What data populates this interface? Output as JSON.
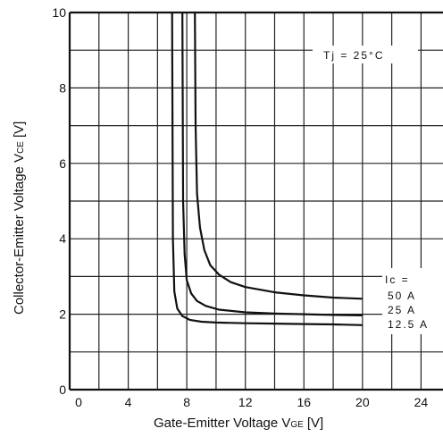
{
  "chart_data": {
    "type": "line",
    "xlabel": "Gate-Emitter Voltage V",
    "xlabel_sub": "GE",
    "xlabel_unit": "[V]",
    "ylabel": "Collector-Emitter Voltage V",
    "ylabel_sub": "CE",
    "ylabel_unit": "[V]",
    "xlim": [
      0,
      24
    ],
    "ylim": [
      0,
      10
    ],
    "x_ticks": [
      "0",
      "4",
      "8",
      "12",
      "16",
      "20",
      "24"
    ],
    "y_ticks": [
      "0",
      "2",
      "4",
      "6",
      "8",
      "10"
    ],
    "grid": true,
    "grid_step_x": 2,
    "grid_step_y": 1,
    "condition": "Tj = 25°C",
    "legend_title": "Ic =",
    "series": [
      {
        "name": "50 A",
        "x": [
          8.55,
          8.6,
          8.7,
          8.9,
          9.2,
          9.6,
          10.2,
          11,
          12,
          14,
          16,
          18,
          20
        ],
        "y": [
          10.0,
          7.0,
          5.2,
          4.3,
          3.7,
          3.3,
          3.05,
          2.85,
          2.72,
          2.58,
          2.5,
          2.44,
          2.41
        ]
      },
      {
        "name": "25 A",
        "x": [
          7.7,
          7.75,
          7.85,
          8.0,
          8.3,
          8.7,
          9.3,
          10.2,
          12,
          14,
          16,
          18,
          20
        ],
        "y": [
          10.0,
          5.0,
          3.6,
          2.9,
          2.55,
          2.35,
          2.22,
          2.12,
          2.05,
          2.02,
          2.0,
          1.98,
          1.97
        ]
      },
      {
        "name": "12.5 A",
        "x": [
          7.0,
          7.05,
          7.15,
          7.35,
          7.7,
          8.2,
          9.0,
          10.0,
          12,
          14,
          16,
          18,
          20
        ],
        "y": [
          10.0,
          4.0,
          2.6,
          2.15,
          1.95,
          1.85,
          1.8,
          1.78,
          1.76,
          1.75,
          1.74,
          1.73,
          1.71
        ]
      }
    ]
  }
}
